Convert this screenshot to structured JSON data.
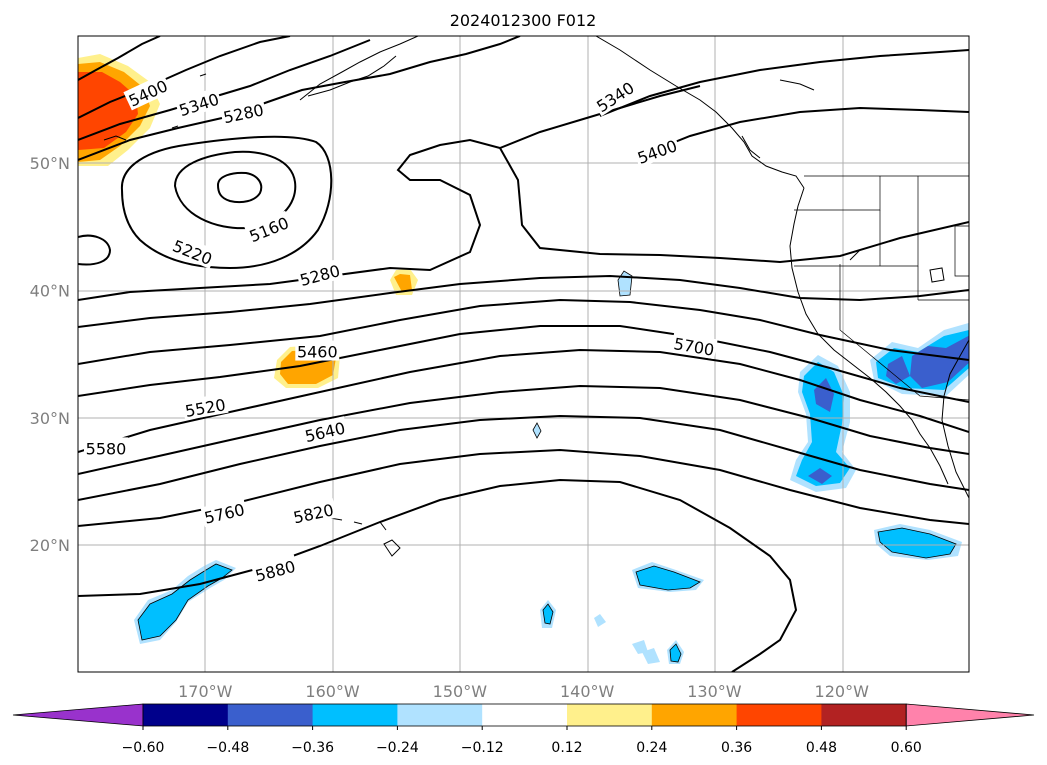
{
  "title": "2024012300 F012",
  "map": {
    "lon_ticks": [
      {
        "lon": -170,
        "label": "170°W"
      },
      {
        "lon": -160,
        "label": "160°W"
      },
      {
        "lon": -150,
        "label": "150°W"
      },
      {
        "lon": -140,
        "label": "140°W"
      },
      {
        "lon": -130,
        "label": "130°W"
      },
      {
        "lon": -120,
        "label": "120°W"
      }
    ],
    "lat_ticks": [
      {
        "lat": 50,
        "label": "50°N"
      },
      {
        "lat": 40,
        "label": "40°N"
      },
      {
        "lat": 30,
        "label": "30°N"
      },
      {
        "lat": 20,
        "label": "20°N"
      }
    ],
    "contour_labels": [
      {
        "value": "5400",
        "lon": -174.5,
        "lat": 55.5,
        "rot": -25
      },
      {
        "value": "5340",
        "lon": -170.5,
        "lat": 54.6,
        "rot": -18
      },
      {
        "value": "5280",
        "lon": -167,
        "lat": 53.9,
        "rot": -12
      },
      {
        "value": "5160",
        "lon": -165,
        "lat": 44.8,
        "rot": -22
      },
      {
        "value": "5220",
        "lon": -171,
        "lat": 43.0,
        "rot": 22
      },
      {
        "value": "5280",
        "lon": -161,
        "lat": 41.2,
        "rot": -15
      },
      {
        "value": "5460",
        "lon": -161.2,
        "lat": 35.2,
        "rot": 0
      },
      {
        "value": "5520",
        "lon": -170,
        "lat": 30.8,
        "rot": -10
      },
      {
        "value": "5580",
        "lon": -177.8,
        "lat": 27.6,
        "rot": 0
      },
      {
        "value": "5640",
        "lon": -160.6,
        "lat": 28.9,
        "rot": -13
      },
      {
        "value": "5760",
        "lon": -168.5,
        "lat": 22.5,
        "rot": -13
      },
      {
        "value": "5820",
        "lon": -161.5,
        "lat": 22.5,
        "rot": -12
      },
      {
        "value": "5880",
        "lon": -164.5,
        "lat": 18.0,
        "rot": -15
      },
      {
        "value": "5700",
        "lon": -131.6,
        "lat": 35.6,
        "rot": 10
      },
      {
        "value": "5400",
        "lon": -134.5,
        "lat": 50.9,
        "rot": -20
      },
      {
        "value": "5340",
        "lon": -137.8,
        "lat": 55.2,
        "rot": -33
      }
    ]
  },
  "colorbar": {
    "colors": [
      "#9932cc",
      "#00008b",
      "#3a5fcd",
      "#00bfff",
      "#b0e2ff",
      "#ffffff",
      "#fff08c",
      "#ffa500",
      "#ff4500",
      "#b22222",
      "#ff82ab"
    ],
    "tick_labels": [
      "−0.60",
      "−0.48",
      "−0.36",
      "−0.24",
      "−0.12",
      "0.12",
      "0.24",
      "0.36",
      "0.48",
      "0.60"
    ]
  }
}
